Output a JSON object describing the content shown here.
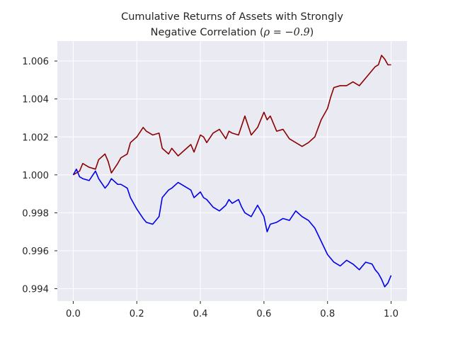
{
  "chart_data": {
    "type": "line",
    "title": "Cumulative Returns of Assets with Strongly",
    "title_line2_prefix": "Negative Correlation (",
    "title_line2_math": "ρ = −0.9",
    "title_line2_suffix": ")",
    "xlabel": "",
    "ylabel": "",
    "xlim": [
      -0.05,
      1.05
    ],
    "ylim": [
      0.99335,
      1.00705
    ],
    "x_ticks": [
      0.0,
      0.2,
      0.4,
      0.6,
      0.8,
      1.0
    ],
    "x_tick_labels": [
      "0.0",
      "0.2",
      "0.4",
      "0.6",
      "0.8",
      "1.0"
    ],
    "y_ticks": [
      0.994,
      0.996,
      0.998,
      1.0,
      1.002,
      1.004,
      1.006
    ],
    "y_tick_labels": [
      "0.994",
      "0.996",
      "0.998",
      "1.000",
      "1.002",
      "1.004",
      "1.006"
    ],
    "grid": true,
    "background": "#eaeaf2",
    "grid_color": "#ffffff",
    "series": [
      {
        "color": "#8b0000",
        "x": [
          0.0,
          0.02,
          0.03,
          0.05,
          0.07,
          0.08,
          0.1,
          0.11,
          0.12,
          0.14,
          0.15,
          0.17,
          0.18,
          0.2,
          0.22,
          0.23,
          0.25,
          0.27,
          0.28,
          0.3,
          0.31,
          0.33,
          0.35,
          0.37,
          0.38,
          0.4,
          0.41,
          0.42,
          0.44,
          0.46,
          0.48,
          0.49,
          0.5,
          0.52,
          0.53,
          0.54,
          0.56,
          0.58,
          0.6,
          0.61,
          0.62,
          0.64,
          0.66,
          0.68,
          0.7,
          0.72,
          0.74,
          0.76,
          0.78,
          0.8,
          0.81,
          0.82,
          0.84,
          0.86,
          0.88,
          0.9,
          0.92,
          0.94,
          0.95,
          0.96,
          0.97,
          0.98,
          0.99,
          1.0
        ],
        "y": [
          1.0,
          1.0002,
          1.0006,
          1.0004,
          1.0003,
          1.0008,
          1.0011,
          1.0007,
          1.0001,
          1.0006,
          1.0009,
          1.0011,
          1.0017,
          1.002,
          1.0025,
          1.0023,
          1.0021,
          1.0022,
          1.0014,
          1.0011,
          1.0014,
          1.001,
          1.0013,
          1.0016,
          1.0012,
          1.0021,
          1.002,
          1.0017,
          1.0022,
          1.0024,
          1.0019,
          1.0023,
          1.0022,
          1.0021,
          1.0026,
          1.0031,
          1.0021,
          1.0025,
          1.0033,
          1.0029,
          1.0031,
          1.0023,
          1.0024,
          1.0019,
          1.0017,
          1.0015,
          1.0017,
          1.002,
          1.0029,
          1.0035,
          1.0041,
          1.0046,
          1.0047,
          1.0047,
          1.0049,
          1.0047,
          1.0051,
          1.0055,
          1.0057,
          1.0058,
          1.0063,
          1.0061,
          1.0058,
          1.0058
        ]
      },
      {
        "color": "#0000ee",
        "x": [
          0.0,
          0.01,
          0.02,
          0.03,
          0.05,
          0.07,
          0.08,
          0.1,
          0.11,
          0.12,
          0.14,
          0.15,
          0.17,
          0.18,
          0.2,
          0.22,
          0.23,
          0.25,
          0.27,
          0.28,
          0.3,
          0.31,
          0.33,
          0.35,
          0.37,
          0.38,
          0.4,
          0.41,
          0.42,
          0.44,
          0.46,
          0.48,
          0.49,
          0.5,
          0.52,
          0.53,
          0.54,
          0.56,
          0.58,
          0.6,
          0.61,
          0.62,
          0.64,
          0.66,
          0.68,
          0.7,
          0.72,
          0.74,
          0.76,
          0.78,
          0.8,
          0.81,
          0.82,
          0.84,
          0.86,
          0.88,
          0.9,
          0.92,
          0.94,
          0.95,
          0.96,
          0.97,
          0.98,
          0.99,
          1.0
        ],
        "y": [
          1.0,
          1.0003,
          0.9999,
          0.9998,
          0.9997,
          1.0002,
          0.9998,
          0.9993,
          0.9995,
          0.9998,
          0.9995,
          0.9995,
          0.9993,
          0.9988,
          0.9982,
          0.9977,
          0.9975,
          0.9974,
          0.9978,
          0.9988,
          0.9992,
          0.9993,
          0.9996,
          0.9994,
          0.9992,
          0.9988,
          0.9991,
          0.9988,
          0.9987,
          0.9983,
          0.9981,
          0.9984,
          0.9987,
          0.9985,
          0.9987,
          0.9983,
          0.998,
          0.9978,
          0.9984,
          0.9978,
          0.997,
          0.9974,
          0.9975,
          0.9977,
          0.9976,
          0.9981,
          0.9978,
          0.9976,
          0.9972,
          0.9965,
          0.9958,
          0.9956,
          0.9954,
          0.9952,
          0.9955,
          0.9953,
          0.995,
          0.9954,
          0.9953,
          0.995,
          0.9948,
          0.9945,
          0.9941,
          0.9943,
          0.9947
        ]
      }
    ]
  }
}
